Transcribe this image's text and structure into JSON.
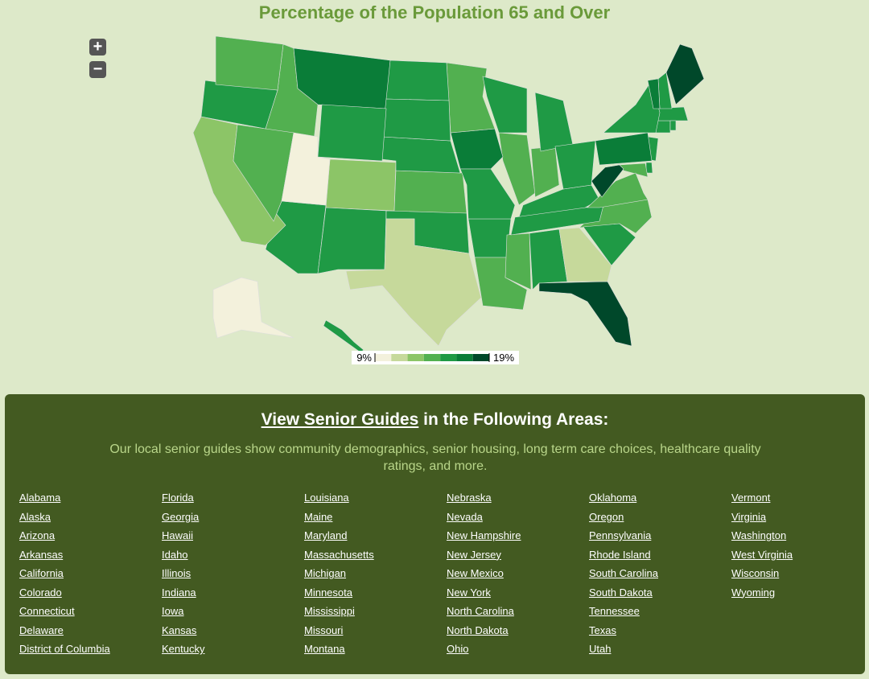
{
  "header": {
    "title": "Percentage of the Population 65 and Over"
  },
  "map": {
    "values": [
      15.5,
      10,
      15.5,
      15.5,
      13,
      13,
      15.5,
      15.5,
      12,
      18.5,
      11.5,
      15.5,
      14,
      14,
      14,
      17,
      14,
      15.5,
      14,
      18.5,
      14,
      15.5,
      15.5,
      14,
      14,
      15.5,
      17,
      15.5,
      14,
      15.5,
      15.5,
      15.5,
      15.5,
      14,
      15.5,
      15.5,
      15.5,
      15.5,
      17,
      15.5,
      15.5,
      15.5,
      15.5,
      11.5,
      10,
      17,
      14,
      14,
      18.5,
      15.5,
      15.5
    ],
    "legend": {
      "min": {
        "value": 9,
        "label": "9%"
      },
      "max": {
        "value": 19,
        "label": "19%"
      },
      "colors": [
        "#f3f1dc",
        "#c6d99b",
        "#8cc567",
        "#52b050",
        "#1f9a45",
        "#0a7d38",
        "#00482a"
      ]
    }
  },
  "guides": {
    "heading_link": "View Senior Guides",
    "heading_rest": " in the Following Areas:",
    "description": "Our local senior guides show community demographics, senior housing, long term care choices, healthcare quality ratings, and more.",
    "links": [
      "Alabama",
      "Alaska",
      "Arizona",
      "Arkansas",
      "California",
      "Colorado",
      "Connecticut",
      "Delaware",
      "District of Columbia",
      "Florida",
      "Georgia",
      "Hawaii",
      "Idaho",
      "Illinois",
      "Indiana",
      "Iowa",
      "Kansas",
      "Kentucky",
      "Louisiana",
      "Maine",
      "Maryland",
      "Massachusetts",
      "Michigan",
      "Minnesota",
      "Mississippi",
      "Missouri",
      "Montana",
      "Nebraska",
      "Nevada",
      "New Hampshire",
      "New Jersey",
      "New Mexico",
      "New York",
      "North Carolina",
      "North Dakota",
      "Ohio",
      "Oklahoma",
      "Oregon",
      "Pennsylvania",
      "Rhode Island",
      "South Carolina",
      "South Dakota",
      "Tennessee",
      "Texas",
      "Utah",
      "Vermont",
      "Virginia",
      "Washington",
      "West Virginia",
      "Wisconsin",
      "Wyoming"
    ]
  }
}
